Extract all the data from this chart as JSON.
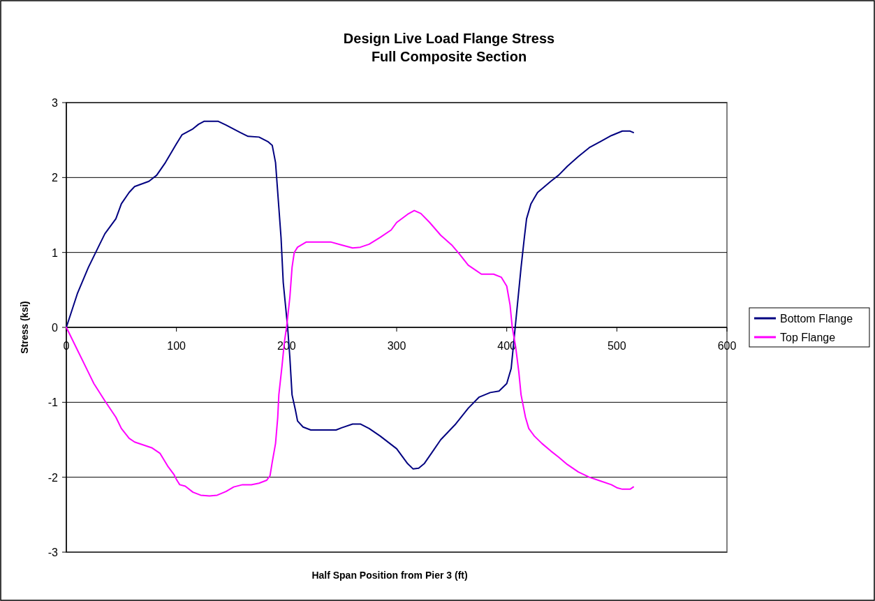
{
  "chart_data": {
    "type": "line",
    "title": "Design Live Load Flange Stress",
    "subtitle": "Full Composite Section",
    "xlabel": "Half Span Position from Pier 3 (ft)",
    "ylabel": "Stress (ksi)",
    "xlim": [
      0,
      600
    ],
    "xticks": [
      0,
      100,
      200,
      300,
      400,
      500,
      600
    ],
    "ylim": [
      -3,
      3
    ],
    "yticks": [
      -3,
      -2,
      -1,
      0,
      1,
      2,
      3
    ],
    "grid": "y",
    "legend": "right",
    "marker": "none",
    "line_style": "solid",
    "series": [
      {
        "name": "Bottom Flange",
        "color": "#000080",
        "x": [
          0,
          10,
          20,
          30,
          35,
          45,
          50,
          57,
          62,
          75,
          82,
          90,
          100,
          105,
          115,
          120,
          125,
          138,
          145,
          158,
          165,
          175,
          183,
          187,
          190,
          193,
          195,
          197,
          199,
          201,
          203,
          205,
          208,
          210,
          215,
          222,
          245,
          250,
          260,
          267,
          275,
          285,
          300,
          310,
          315,
          320,
          325,
          333,
          340,
          353,
          365,
          375,
          385,
          393,
          400,
          404,
          407,
          409,
          413,
          416,
          418,
          422,
          428,
          440,
          447,
          455,
          465,
          475,
          485,
          495,
          505,
          512,
          515
        ],
        "values": [
          0,
          0.45,
          0.8,
          1.1,
          1.25,
          1.45,
          1.65,
          1.8,
          1.88,
          1.95,
          2.03,
          2.2,
          2.45,
          2.57,
          2.65,
          2.71,
          2.75,
          2.75,
          2.7,
          2.6,
          2.55,
          2.54,
          2.48,
          2.43,
          2.2,
          1.6,
          1.2,
          0.6,
          0.3,
          0,
          -0.4,
          -0.9,
          -1.1,
          -1.25,
          -1.33,
          -1.37,
          -1.37,
          -1.34,
          -1.29,
          -1.29,
          -1.35,
          -1.45,
          -1.62,
          -1.82,
          -1.89,
          -1.88,
          -1.82,
          -1.65,
          -1.5,
          -1.3,
          -1.08,
          -0.93,
          -0.87,
          -0.85,
          -0.75,
          -0.55,
          -0.1,
          0.2,
          0.8,
          1.2,
          1.45,
          1.65,
          1.8,
          1.95,
          2.03,
          2.15,
          2.28,
          2.4,
          2.48,
          2.56,
          2.62,
          2.62,
          2.6
        ]
      },
      {
        "name": "Top Flange",
        "color": "#ff00ff",
        "x": [
          0,
          10,
          20,
          25,
          35,
          45,
          50,
          57,
          62,
          70,
          78,
          85,
          92,
          98,
          100,
          103,
          108,
          115,
          122,
          130,
          137,
          145,
          152,
          160,
          168,
          175,
          182,
          185,
          187,
          190,
          192,
          193,
          196,
          198,
          200,
          203,
          205,
          207,
          210,
          218,
          240,
          250,
          260,
          267,
          275,
          285,
          295,
          300,
          310,
          316,
          322,
          330,
          340,
          350,
          357,
          365,
          372,
          377,
          388,
          395,
          400,
          403,
          405,
          408,
          411,
          413,
          417,
          420,
          425,
          432,
          440,
          447,
          455,
          465,
          475,
          485,
          495,
          500,
          505,
          512,
          515
        ],
        "values": [
          0,
          -0.3,
          -0.6,
          -0.75,
          -0.98,
          -1.2,
          -1.35,
          -1.48,
          -1.53,
          -1.57,
          -1.61,
          -1.68,
          -1.85,
          -1.97,
          -2.03,
          -2.1,
          -2.12,
          -2.2,
          -2.24,
          -2.25,
          -2.24,
          -2.19,
          -2.13,
          -2.1,
          -2.1,
          -2.08,
          -2.04,
          -1.98,
          -1.8,
          -1.55,
          -1.2,
          -0.9,
          -0.5,
          -0.2,
          0,
          0.4,
          0.8,
          1.0,
          1.07,
          1.14,
          1.14,
          1.1,
          1.06,
          1.07,
          1.11,
          1.2,
          1.3,
          1.4,
          1.51,
          1.56,
          1.52,
          1.4,
          1.23,
          1.1,
          0.98,
          0.83,
          0.76,
          0.71,
          0.71,
          0.67,
          0.55,
          0.3,
          0,
          -0.25,
          -0.6,
          -0.9,
          -1.2,
          -1.35,
          -1.45,
          -1.55,
          -1.65,
          -1.73,
          -1.83,
          -1.93,
          -2.0,
          -2.05,
          -2.1,
          -2.14,
          -2.16,
          -2.16,
          -2.13
        ]
      }
    ]
  }
}
